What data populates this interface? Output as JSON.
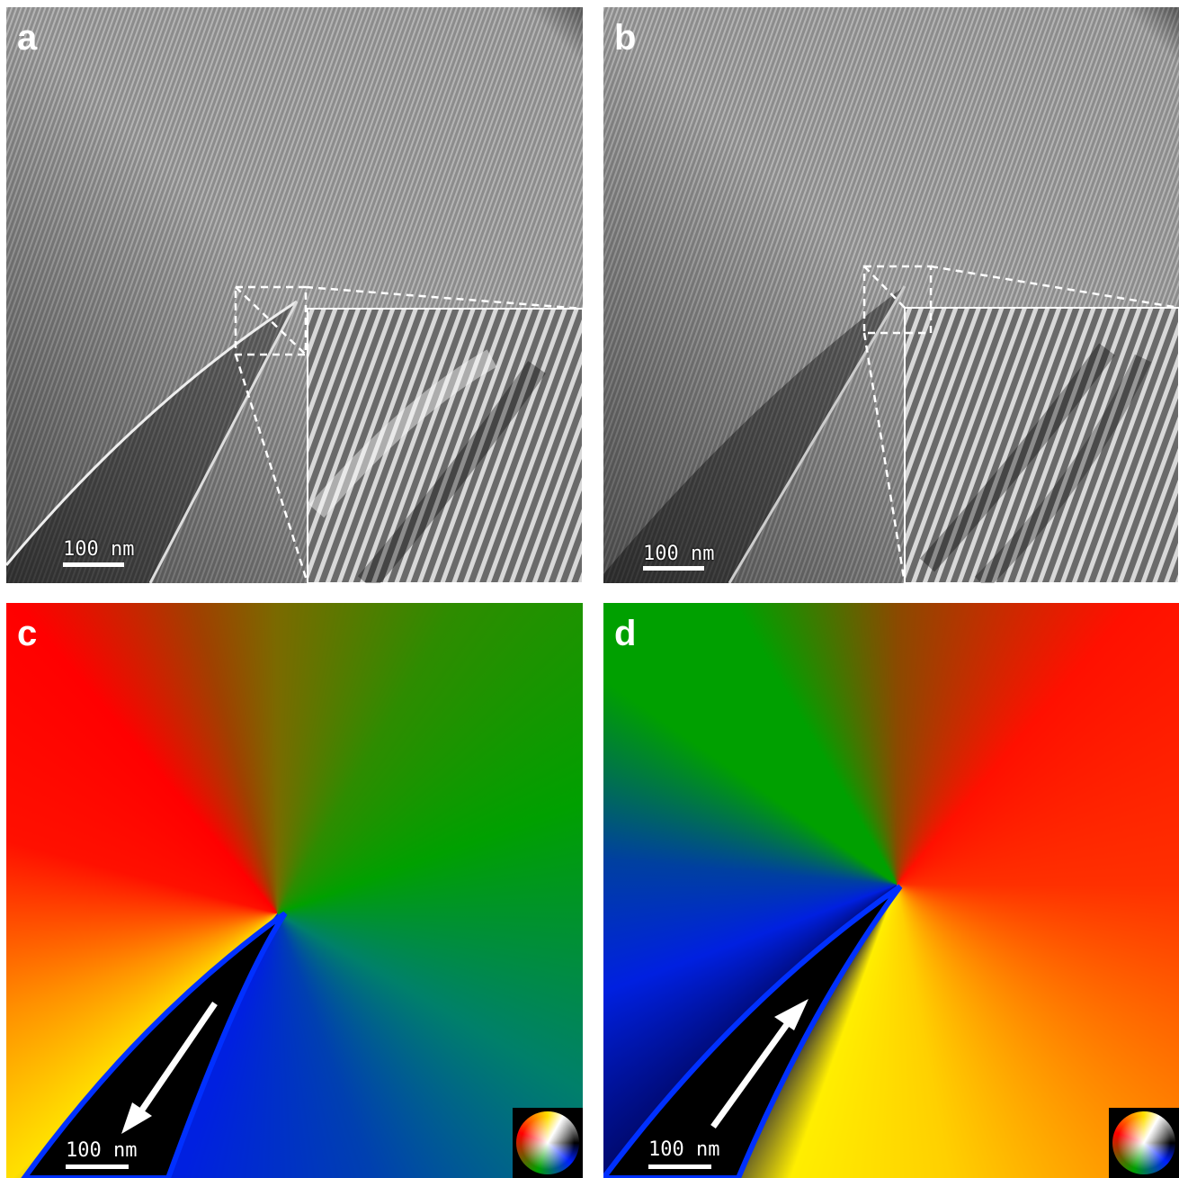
{
  "panels": [
    {
      "label": "a",
      "scale_bar": "100 nm"
    },
    {
      "label": "b",
      "scale_bar": "100 nm"
    },
    {
      "label": "c",
      "scale_bar": "100 nm"
    },
    {
      "label": "d",
      "scale_bar": "100 nm"
    }
  ]
}
